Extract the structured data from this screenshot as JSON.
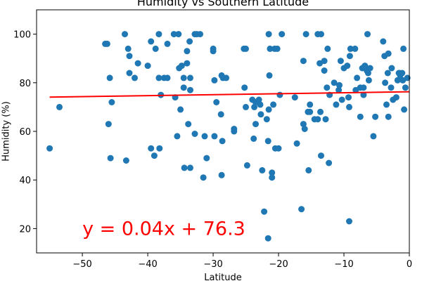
{
  "chart_data": {
    "type": "scatter",
    "title": "Humidity vs Southern Latitude",
    "xlabel": "Latitude",
    "ylabel": "Humidity (%)",
    "xlim": [
      -57,
      0
    ],
    "ylim": [
      10,
      110
    ],
    "xticks": [
      -50,
      -40,
      -30,
      -20,
      -10,
      0
    ],
    "yticks": [
      20,
      40,
      60,
      80,
      100
    ],
    "grid": false,
    "point_color": "#1f77b4",
    "line_color": "#ff0000",
    "regression": {
      "slope": 0.04,
      "intercept": 76.3
    },
    "annotation": {
      "text": "y = 0.04x + 76.3",
      "x": -50,
      "y": 20
    },
    "points": [
      [
        -55,
        53
      ],
      [
        -53.5,
        70
      ],
      [
        -46.5,
        96
      ],
      [
        -46.2,
        96
      ],
      [
        -46,
        63
      ],
      [
        -45.8,
        82
      ],
      [
        -45.7,
        49
      ],
      [
        -45.5,
        72
      ],
      [
        -43.5,
        100
      ],
      [
        -43.3,
        48
      ],
      [
        -43,
        94
      ],
      [
        -42.8,
        91
      ],
      [
        -42.8,
        84
      ],
      [
        -42,
        82
      ],
      [
        -41.5,
        88
      ],
      [
        -40,
        87
      ],
      [
        -39.5,
        97
      ],
      [
        -39.5,
        53
      ],
      [
        -39,
        50
      ],
      [
        -38.8,
        94
      ],
      [
        -38.3,
        100
      ],
      [
        -38.3,
        82
      ],
      [
        -38.2,
        53
      ],
      [
        -38,
        75
      ],
      [
        -37.5,
        82
      ],
      [
        -37,
        96
      ],
      [
        -37,
        82
      ],
      [
        -36,
        100
      ],
      [
        -35.8,
        74
      ],
      [
        -35.5,
        58
      ],
      [
        -35.3,
        100
      ],
      [
        -35.2,
        86
      ],
      [
        -35,
        69
      ],
      [
        -34.8,
        87
      ],
      [
        -34.5,
        82
      ],
      [
        -34.5,
        78
      ],
      [
        -34.4,
        45
      ],
      [
        -34,
        93
      ],
      [
        -34,
        88
      ],
      [
        -33.8,
        63
      ],
      [
        -33.6,
        97
      ],
      [
        -33.5,
        82
      ],
      [
        -33.5,
        77
      ],
      [
        -33.5,
        45
      ],
      [
        -32.8,
        100
      ],
      [
        -32.8,
        59
      ],
      [
        -32.5,
        100
      ],
      [
        -32,
        100
      ],
      [
        -31.3,
        58
      ],
      [
        -31,
        49
      ],
      [
        -31.5,
        41
      ],
      [
        -30,
        94
      ],
      [
        -30,
        93
      ],
      [
        -29.8,
        81
      ],
      [
        -29.8,
        58
      ],
      [
        -29.5,
        72
      ],
      [
        -28.8,
        67
      ],
      [
        -28.6,
        56
      ],
      [
        -28.7,
        83
      ],
      [
        -28.5,
        82
      ],
      [
        -28.7,
        42
      ],
      [
        -28,
        82
      ],
      [
        -26.8,
        61
      ],
      [
        -26.8,
        60
      ],
      [
        -25.3,
        94
      ],
      [
        -25.2,
        78
      ],
      [
        -25,
        94
      ],
      [
        -25,
        70
      ],
      [
        -24.8,
        46
      ],
      [
        -24,
        73
      ],
      [
        -23.8,
        57
      ],
      [
        -23.7,
        70
      ],
      [
        -23.5,
        72
      ],
      [
        -23.5,
        63
      ],
      [
        -23,
        73
      ],
      [
        -22.8,
        71
      ],
      [
        -22.7,
        67
      ],
      [
        -22.5,
        44
      ],
      [
        -22.2,
        27
      ],
      [
        -21.8,
        65
      ],
      [
        -21.6,
        16
      ],
      [
        -21.5,
        69
      ],
      [
        -21.6,
        56
      ],
      [
        -21.5,
        100
      ],
      [
        -21.4,
        83
      ],
      [
        -21.3,
        94
      ],
      [
        -21,
        43
      ],
      [
        -21,
        41
      ],
      [
        -20.8,
        71
      ],
      [
        -20.6,
        94
      ],
      [
        -20.5,
        53
      ],
      [
        -20.2,
        94
      ],
      [
        -20,
        53
      ],
      [
        -19.8,
        75
      ],
      [
        -19.5,
        100
      ],
      [
        -17.5,
        74
      ],
      [
        -17.2,
        55
      ],
      [
        -16.5,
        28
      ],
      [
        -16.2,
        89
      ],
      [
        -16.2,
        63
      ],
      [
        -16,
        61
      ],
      [
        -15.8,
        100
      ],
      [
        -15.5,
        68
      ],
      [
        -15.4,
        44
      ],
      [
        -15.2,
        71
      ],
      [
        -15.2,
        68
      ],
      [
        -14.5,
        65
      ],
      [
        -14,
        65
      ],
      [
        -14,
        100
      ],
      [
        -13.7,
        88
      ],
      [
        -13.6,
        68
      ],
      [
        -13.5,
        100
      ],
      [
        -13.5,
        50
      ],
      [
        -13,
        89
      ],
      [
        -13,
        85
      ],
      [
        -12.8,
        65
      ],
      [
        -12.6,
        78
      ],
      [
        -12.5,
        94
      ],
      [
        -12.2,
        75
      ],
      [
        -12.3,
        47
      ],
      [
        -11.5,
        80
      ],
      [
        -11.2,
        71
      ],
      [
        -10.8,
        77
      ],
      [
        -10.7,
        79
      ],
      [
        -10.5,
        89
      ],
      [
        -10.3,
        73
      ],
      [
        -10,
        86
      ],
      [
        -9.5,
        87
      ],
      [
        -9.3,
        74
      ],
      [
        -9.2,
        23
      ],
      [
        -9.2,
        70
      ],
      [
        -9.1,
        91
      ],
      [
        -9,
        94
      ],
      [
        -8.3,
        94
      ],
      [
        -8.2,
        77
      ],
      [
        -8,
        82
      ],
      [
        -7.5,
        66
      ],
      [
        -7.5,
        78
      ],
      [
        -7.2,
        86
      ],
      [
        -7,
        75
      ],
      [
        -7,
        78
      ],
      [
        -6.8,
        87
      ],
      [
        -6.5,
        85
      ],
      [
        -6.4,
        100
      ],
      [
        -6.3,
        84
      ],
      [
        -6.2,
        81
      ],
      [
        -6,
        86
      ],
      [
        -5.5,
        58
      ],
      [
        -5.2,
        66
      ],
      [
        -4,
        97
      ],
      [
        -3.8,
        91
      ],
      [
        -3.7,
        80
      ],
      [
        -3.5,
        71
      ],
      [
        -3.3,
        84
      ],
      [
        -3.2,
        92
      ],
      [
        -3.2,
        66
      ],
      [
        -2.8,
        78
      ],
      [
        -2.7,
        86
      ],
      [
        -2.5,
        73
      ],
      [
        -2,
        74
      ],
      [
        -1.8,
        81
      ],
      [
        -1.6,
        84
      ],
      [
        -1.5,
        84
      ],
      [
        -1.4,
        83
      ],
      [
        -1.1,
        84
      ],
      [
        -1,
        81
      ],
      [
        -0.9,
        94
      ],
      [
        -0.8,
        69
      ],
      [
        -0.6,
        78
      ],
      [
        -0.3,
        82
      ]
    ]
  }
}
